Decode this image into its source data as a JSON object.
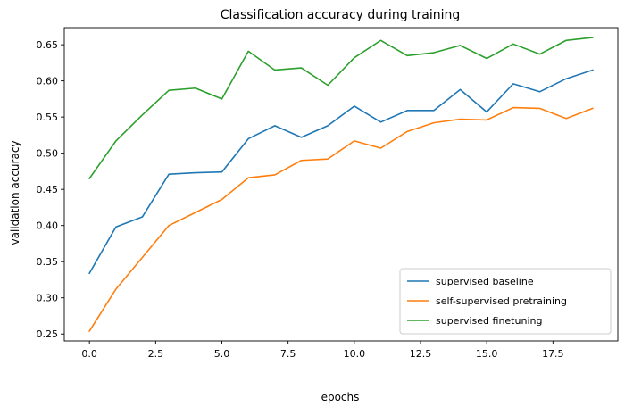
{
  "chart_data": {
    "type": "line",
    "title": "Classification accuracy during training",
    "xlabel": "epochs",
    "ylabel": "validation accuracy",
    "x": [
      0,
      1,
      2,
      3,
      4,
      5,
      6,
      7,
      8,
      9,
      10,
      11,
      12,
      13,
      14,
      15,
      16,
      17,
      18,
      19
    ],
    "xlim": [
      -0.95,
      19.95
    ],
    "ylim": [
      0.2404,
      0.6736
    ],
    "xticks": [
      0.0,
      2.5,
      5.0,
      7.5,
      10.0,
      12.5,
      15.0,
      17.5
    ],
    "xtick_labels": [
      "0.0",
      "2.5",
      "5.0",
      "7.5",
      "10.0",
      "12.5",
      "15.0",
      "17.5"
    ],
    "yticks": [
      0.25,
      0.3,
      0.35,
      0.4,
      0.45,
      0.5,
      0.55,
      0.6,
      0.65
    ],
    "ytick_labels": [
      "0.25",
      "0.30",
      "0.35",
      "0.40",
      "0.45",
      "0.50",
      "0.55",
      "0.60",
      "0.65"
    ],
    "grid": false,
    "legend_position": "bottom-right",
    "series": [
      {
        "name": "supervised baseline",
        "color": "#1f77b4",
        "values": [
          0.334,
          0.398,
          0.412,
          0.471,
          0.473,
          0.474,
          0.52,
          0.538,
          0.522,
          0.538,
          0.565,
          0.543,
          0.559,
          0.559,
          0.588,
          0.557,
          0.596,
          0.585,
          0.603,
          0.615
        ]
      },
      {
        "name": "self-supervised pretraining",
        "color": "#ff7f0e",
        "values": [
          0.254,
          0.312,
          0.356,
          0.4,
          0.418,
          0.436,
          0.466,
          0.47,
          0.49,
          0.492,
          0.517,
          0.507,
          0.53,
          0.542,
          0.547,
          0.546,
          0.563,
          0.562,
          0.548,
          0.562
        ]
      },
      {
        "name": "supervised finetuning",
        "color": "#2ca02c",
        "values": [
          0.465,
          0.517,
          0.553,
          0.587,
          0.59,
          0.575,
          0.641,
          0.615,
          0.618,
          0.594,
          0.632,
          0.656,
          0.635,
          0.639,
          0.649,
          0.631,
          0.651,
          0.637,
          0.656,
          0.66
        ]
      }
    ]
  }
}
